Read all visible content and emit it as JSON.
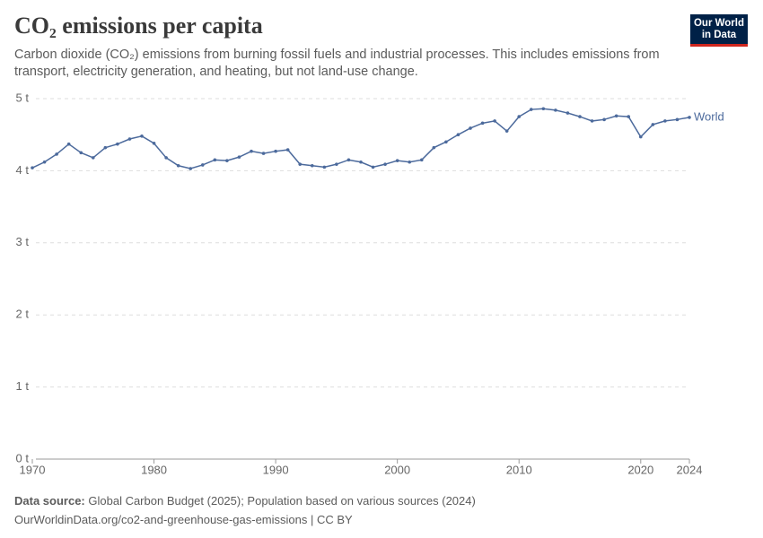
{
  "chart_data": {
    "type": "line",
    "title": "CO₂ emissions per capita",
    "subtitle": "Carbon dioxide (CO₂) emissions from burning fossil fuels and industrial processes. This includes emissions from transport, electricity generation, and heating, but not land-use change.",
    "logo": [
      "Our World",
      "in Data"
    ],
    "source_label": "Data source:",
    "source": "Global Carbon Budget (2025); Population based on various sources (2024)",
    "url": "OurWorldinData.org/co2-and-greenhouse-gas-emissions | CC BY",
    "x": [
      1970,
      1971,
      1972,
      1973,
      1974,
      1975,
      1976,
      1977,
      1978,
      1979,
      1980,
      1981,
      1982,
      1983,
      1984,
      1985,
      1986,
      1987,
      1988,
      1989,
      1990,
      1991,
      1992,
      1993,
      1994,
      1995,
      1996,
      1997,
      1998,
      1999,
      2000,
      2001,
      2002,
      2003,
      2004,
      2005,
      2006,
      2007,
      2008,
      2009,
      2010,
      2011,
      2012,
      2013,
      2014,
      2015,
      2016,
      2017,
      2018,
      2019,
      2020,
      2021,
      2022,
      2023,
      2024
    ],
    "series": [
      {
        "name": "World",
        "color": "#4c6a9c",
        "values": [
          4.04,
          4.12,
          4.23,
          4.37,
          4.25,
          4.18,
          4.32,
          4.37,
          4.44,
          4.48,
          4.38,
          4.18,
          4.07,
          4.03,
          4.08,
          4.15,
          4.14,
          4.19,
          4.27,
          4.24,
          4.27,
          4.29,
          4.09,
          4.07,
          4.05,
          4.09,
          4.15,
          4.12,
          4.05,
          4.09,
          4.14,
          4.12,
          4.15,
          4.32,
          4.4,
          4.5,
          4.59,
          4.66,
          4.69,
          4.55,
          4.75,
          4.85,
          4.86,
          4.84,
          4.8,
          4.75,
          4.69,
          4.71,
          4.76,
          4.75,
          4.47,
          4.64,
          4.69,
          4.71,
          4.74
        ]
      }
    ],
    "xlim": [
      1970,
      2024
    ],
    "xticks": [
      1970,
      1980,
      1990,
      2000,
      2010,
      2020,
      2024
    ],
    "ylim": [
      0,
      5
    ],
    "yticks": [
      {
        "value": 0,
        "label": "0 t"
      },
      {
        "value": 1,
        "label": "1 t"
      },
      {
        "value": 2,
        "label": "2 t"
      },
      {
        "value": 3,
        "label": "3 t"
      },
      {
        "value": 4,
        "label": "4 t"
      },
      {
        "value": 5,
        "label": "5 t"
      }
    ],
    "grid": true
  }
}
